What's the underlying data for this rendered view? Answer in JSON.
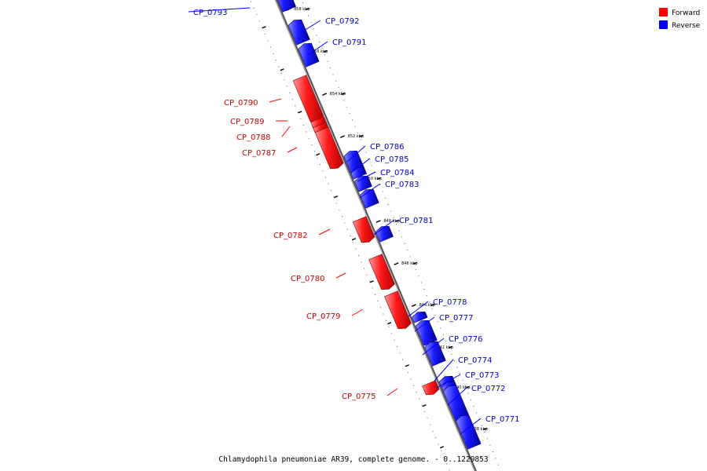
{
  "caption": "Chlamydophila pneumoniae AR39, complete genome. - 0..1229853",
  "legend": [
    {
      "label": "Forward",
      "color": "#ff0000"
    },
    {
      "label": "Reverse",
      "color": "#0000ff"
    }
  ],
  "ticks": [
    "858 kbp",
    "856 kbp",
    "854 kbp",
    "852 kbp",
    "850 kbp",
    "848 kbp",
    "846 kbp",
    "844 kbp",
    "842 kbp",
    "840 kbp",
    "838 kbp"
  ],
  "genes": [
    {
      "name": "CP_0793",
      "strand": "reverse"
    },
    {
      "name": "CP_0792",
      "strand": "reverse"
    },
    {
      "name": "CP_0791",
      "strand": "reverse"
    },
    {
      "name": "CP_0790",
      "strand": "forward"
    },
    {
      "name": "CP_0789",
      "strand": "forward"
    },
    {
      "name": "CP_0788",
      "strand": "forward"
    },
    {
      "name": "CP_0787",
      "strand": "forward"
    },
    {
      "name": "CP_0786",
      "strand": "reverse"
    },
    {
      "name": "CP_0785",
      "strand": "reverse"
    },
    {
      "name": "CP_0784",
      "strand": "reverse"
    },
    {
      "name": "CP_0783",
      "strand": "reverse"
    },
    {
      "name": "CP_0782",
      "strand": "forward"
    },
    {
      "name": "CP_0781",
      "strand": "reverse"
    },
    {
      "name": "CP_0780",
      "strand": "forward"
    },
    {
      "name": "CP_0779",
      "strand": "forward"
    },
    {
      "name": "CP_0778",
      "strand": "reverse"
    },
    {
      "name": "CP_0777",
      "strand": "reverse"
    },
    {
      "name": "CP_0776",
      "strand": "reverse"
    },
    {
      "name": "CP_0775",
      "strand": "forward"
    },
    {
      "name": "CP_0774",
      "strand": "reverse"
    },
    {
      "name": "CP_0773",
      "strand": "reverse"
    },
    {
      "name": "CP_0772",
      "strand": "reverse"
    },
    {
      "name": "CP_0771",
      "strand": "reverse"
    }
  ]
}
